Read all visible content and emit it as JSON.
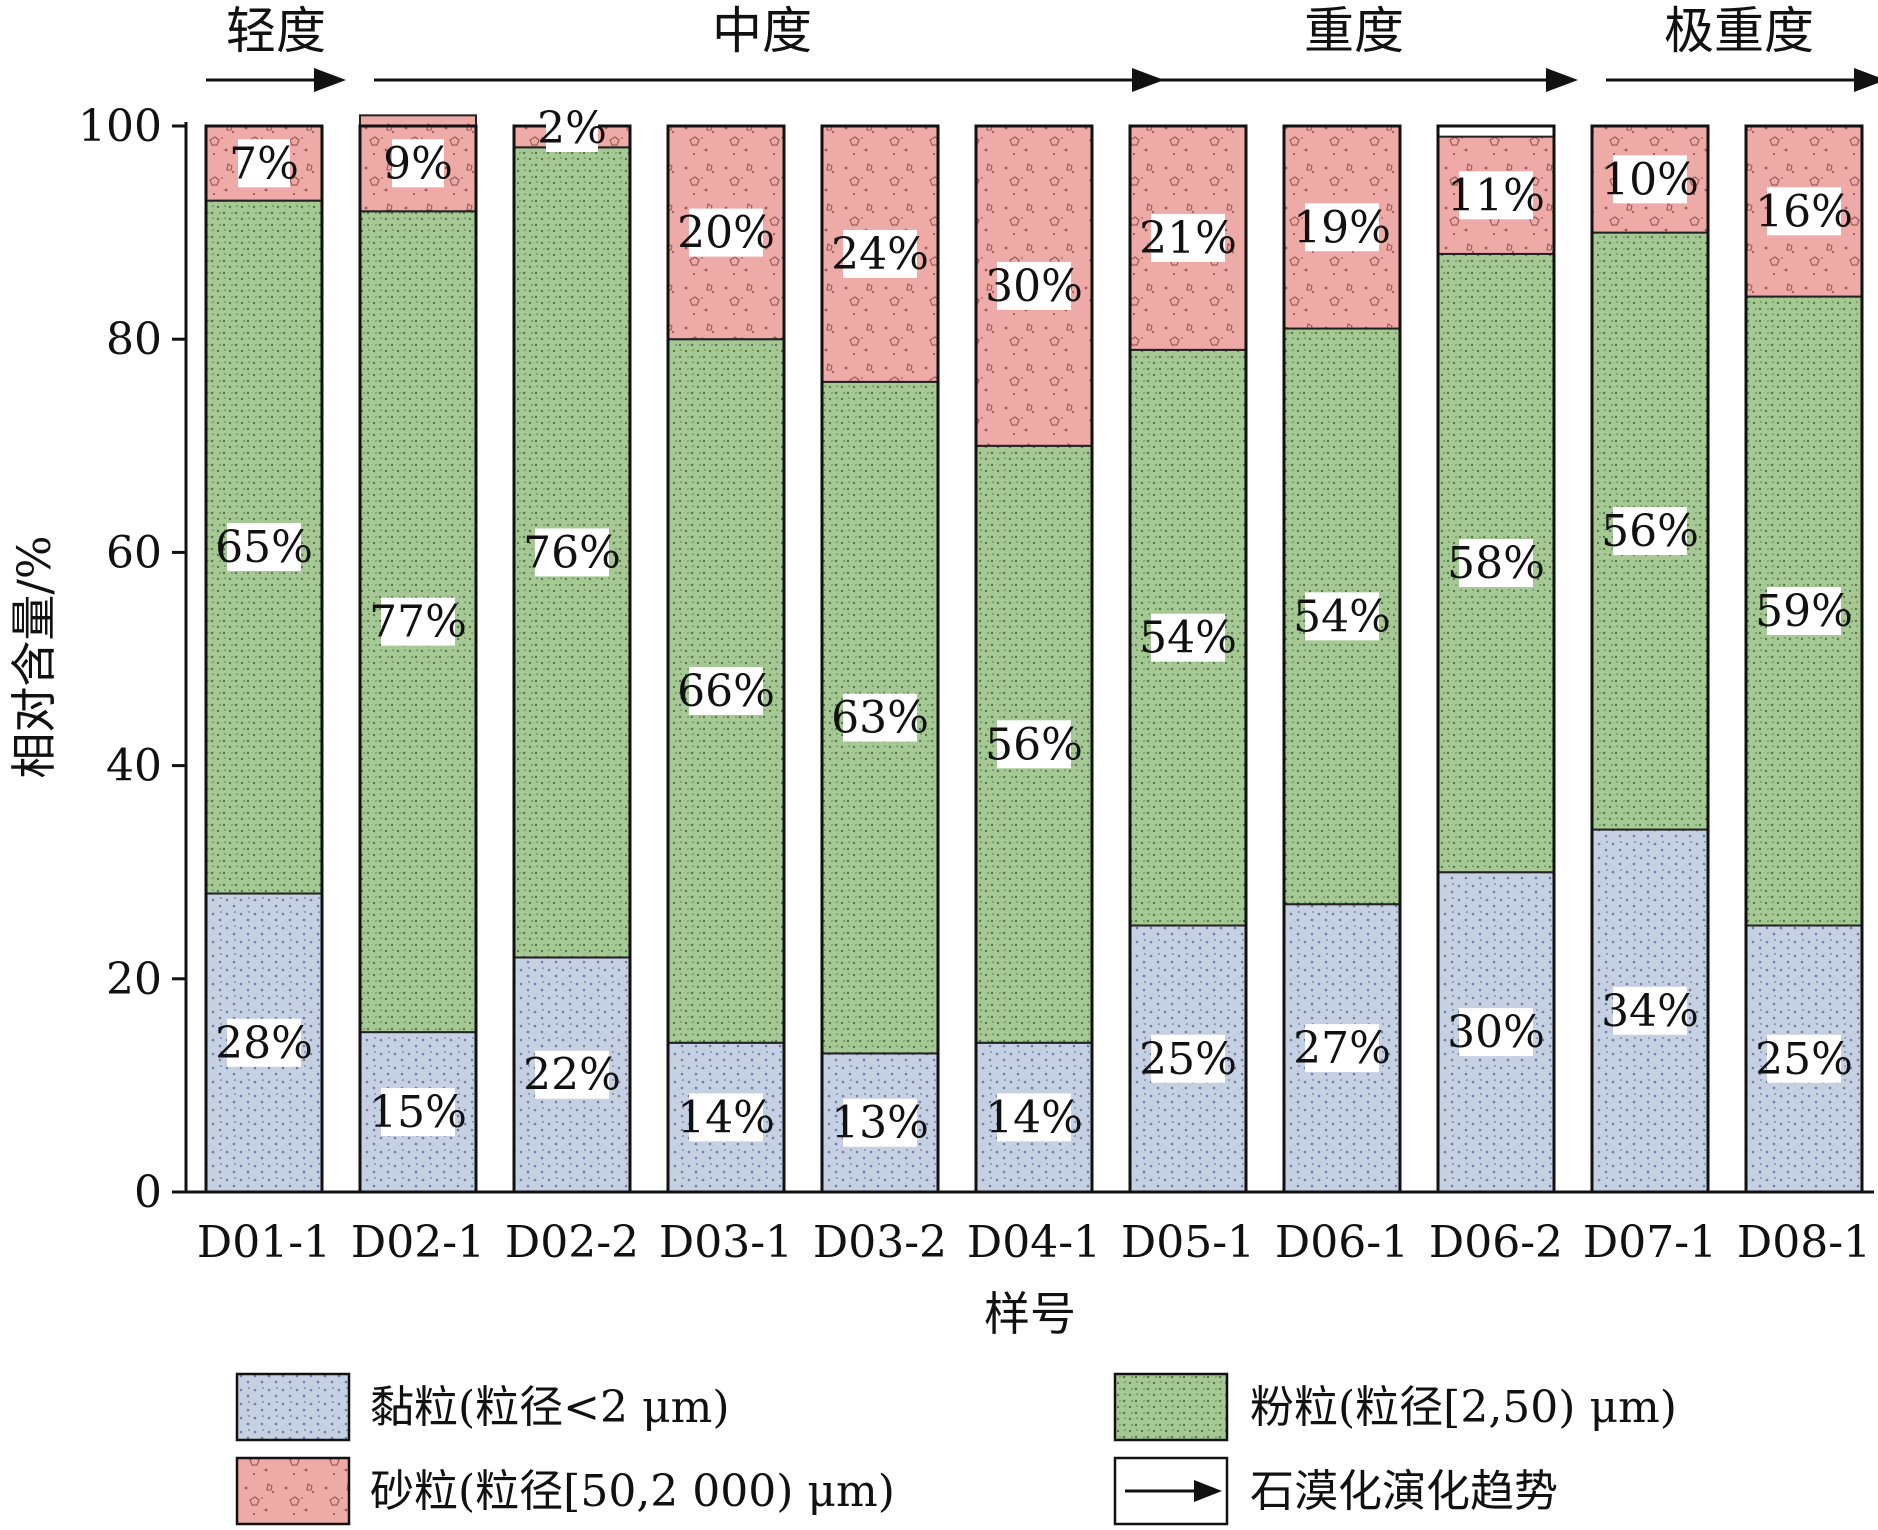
{
  "chart_data": {
    "type": "bar",
    "stacked": true,
    "xlabel": "样号",
    "ylabel": "相对含量/%",
    "ylim": [
      0,
      100
    ],
    "yticks": [
      "0",
      "20",
      "40",
      "60",
      "80",
      "100"
    ],
    "grid": false,
    "legend_position": "bottom",
    "categories": [
      "D01-1",
      "D02-1",
      "D02-2",
      "D03-1",
      "D03-2",
      "D04-1",
      "D05-1",
      "D06-1",
      "D06-2",
      "D07-1",
      "D08-1"
    ],
    "series": [
      {
        "name": "黏粒(粒径<2 μm)",
        "color": "#c5d0e3",
        "dot_color": "#6e7fa3",
        "values": [
          28,
          15,
          22,
          14,
          13,
          14,
          25,
          27,
          30,
          34,
          25
        ],
        "labels": [
          "28%",
          "15%",
          "22%",
          "14%",
          "13%",
          "14%",
          "25%",
          "27%",
          "30%",
          "34%",
          "25%"
        ]
      },
      {
        "name": "粉粒(粒径[2,50) μm)",
        "color": "#a6c895",
        "dot_color": "#4f7a45",
        "values": [
          65,
          77,
          76,
          66,
          63,
          56,
          54,
          54,
          58,
          56,
          59
        ],
        "labels": [
          "65%",
          "77%",
          "76%",
          "66%",
          "63%",
          "56%",
          "54%",
          "54%",
          "58%",
          "56%",
          "59%"
        ]
      },
      {
        "name": "砂粒(粒径[50,2 000) μm)",
        "color": "#eeaaa6",
        "dot_color": "#9e5a58",
        "values": [
          7,
          9,
          2,
          20,
          24,
          30,
          21,
          19,
          11,
          10,
          16
        ],
        "labels": [
          "7%",
          "9%",
          "2%",
          "20%",
          "24%",
          "30%",
          "21%",
          "19%",
          "11%",
          "10%",
          "16%"
        ]
      }
    ],
    "stages": [
      {
        "label": "轻度",
        "from": 0,
        "to": 0
      },
      {
        "label": "中度",
        "from": 1,
        "to": 5
      },
      {
        "label": "重度",
        "from": 6,
        "to": 8
      },
      {
        "label": "极重度",
        "from": 9,
        "to": 10
      }
    ],
    "trend_legend": "石漠化演化趋势"
  }
}
